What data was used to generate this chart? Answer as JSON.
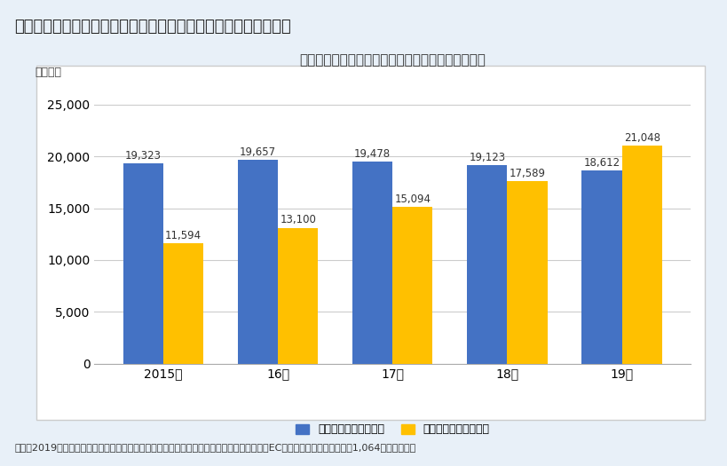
{
  "title_main": "図表１　「テレビメディア広告費」と「インターネット広告費」",
  "chart_title": "テレビメディア広告費とインターネット広告費比較",
  "ylabel": "（億円）",
  "categories": [
    "2015年",
    "16年",
    "17年",
    "18年",
    "19年"
  ],
  "tv_values": [
    19323,
    19657,
    19478,
    19123,
    18612
  ],
  "internet_values": [
    11594,
    13100,
    15094,
    17589,
    21048
  ],
  "tv_color": "#4472C4",
  "internet_color": "#FFC000",
  "ylim": [
    0,
    27000
  ],
  "yticks": [
    0,
    5000,
    10000,
    15000,
    20000,
    25000
  ],
  "legend_tv": "テレビメディア広告費",
  "legend_internet": "インターネット広告費",
  "note": "（注）2019年インターネット広告費には今回追加推定の「日本の広告費」における「物販系ECプラットフォーム広告費」1,064億円も含む。",
  "bg_color": "#ffffff",
  "chart_bg": "#ffffff",
  "outer_bg": "#e8f0f8",
  "bar_width": 0.35,
  "title_fontsize": 13,
  "chart_title_fontsize": 11,
  "tick_fontsize": 10,
  "label_fontsize": 8.5,
  "note_fontsize": 8,
  "legend_fontsize": 9
}
